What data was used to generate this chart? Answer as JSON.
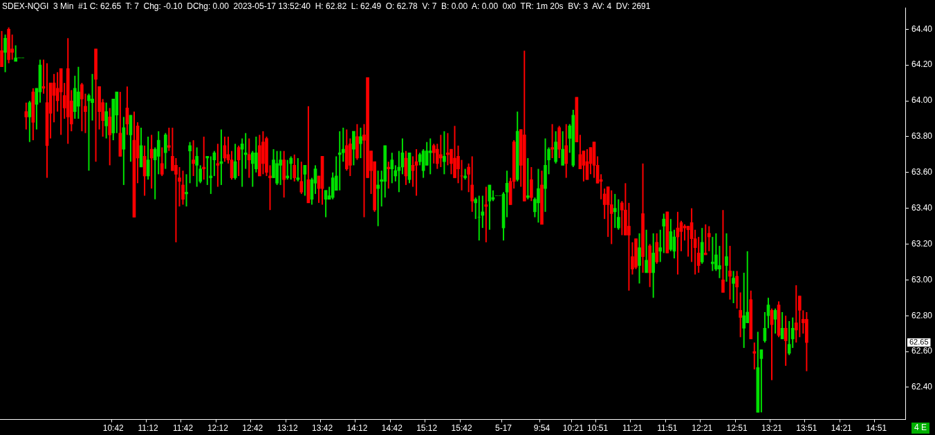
{
  "chart_data": {
    "type": "candlestick",
    "title": "SDEX-NQGI  3 Min  #1 C: 62.65  T: 7  Chg: -0.10  DChg: 0.00  2023-05-17 13:52:40  H: 62.82  L: 62.49  O: 62.78  V: 7  B: 0.00  A: 0.00  0x0  TR: 1m 20s  BV: 3  AV: 4  DV: 2691",
    "categories": [
      null,
      null,
      null,
      null,
      null,
      null,
      null,
      null,
      null,
      null,
      null,
      null,
      null,
      null,
      null,
      null,
      null,
      null,
      null,
      null,
      null,
      null,
      null,
      null,
      null,
      null,
      null,
      null,
      null,
      null,
      null,
      null,
      "10:42",
      null,
      null,
      null,
      null,
      null,
      null,
      null,
      null,
      null,
      "11:12",
      null,
      null,
      null,
      null,
      null,
      null,
      null,
      null,
      null,
      "11:42",
      null,
      null,
      null,
      null,
      null,
      null,
      null,
      null,
      null,
      "12:12",
      null,
      null,
      null,
      null,
      null,
      null,
      null,
      null,
      null,
      "12:42",
      null,
      null,
      null,
      null,
      null,
      null,
      null,
      null,
      null,
      "13:12",
      null,
      null,
      null,
      null,
      null,
      null,
      null,
      null,
      null,
      "13:42",
      null,
      null,
      null,
      null,
      null,
      null,
      null,
      null,
      null,
      "14:12",
      null,
      null,
      null,
      null,
      null,
      null,
      null,
      null,
      null,
      "14:42",
      null,
      null,
      null,
      null,
      null,
      null,
      null,
      null,
      null,
      "15:12",
      null,
      null,
      null,
      null,
      null,
      null,
      null,
      null,
      null,
      "15:42",
      null,
      null,
      null,
      null,
      null,
      null,
      null,
      null,
      null,
      null,
      null,
      "5-17",
      null,
      null,
      null,
      null,
      null,
      null,
      null,
      null,
      null,
      null,
      "9:54",
      null,
      null,
      null,
      null,
      null,
      null,
      null,
      null,
      "10:21",
      null,
      null,
      null,
      null,
      null,
      null,
      "10:51",
      null,
      null,
      null,
      null,
      null,
      null,
      null,
      null,
      null,
      "11:21",
      null,
      null,
      null,
      null,
      null,
      null,
      null,
      null,
      null,
      "11:51",
      null,
      null,
      null,
      null,
      null,
      null,
      null,
      null,
      null,
      "12:21",
      null,
      null,
      null,
      null,
      null,
      null,
      null,
      null,
      null,
      "12:51",
      null,
      null,
      null,
      null,
      null,
      null,
      null,
      null,
      null,
      "13:21",
      null,
      null,
      null,
      null,
      null,
      null,
      null,
      null,
      null,
      "13:51",
      null,
      null,
      null,
      null,
      null,
      null,
      null,
      null,
      null,
      "14:21",
      null,
      null,
      null,
      null,
      null,
      null,
      null,
      null,
      null,
      "14:51",
      null,
      null,
      null,
      null,
      null,
      null,
      null,
      null
    ],
    "ohlc": [
      [
        64.28,
        64.39,
        64.19,
        64.19
      ],
      [
        64.27,
        64.37,
        64.16,
        64.35
      ],
      [
        64.4,
        64.41,
        64.21,
        64.23
      ],
      [
        64.29,
        64.37,
        64.23,
        64.27
      ],
      [
        64.22,
        64.31,
        64.22,
        64.24
      ],
      [
        64.24,
        64.24,
        64.24,
        64.24
      ],
      [
        64.24,
        64.24,
        64.24,
        64.24
      ],
      [
        63.94,
        63.99,
        63.84,
        63.91
      ],
      [
        63.91,
        64.0,
        63.77,
        63.99
      ],
      [
        64.05,
        64.07,
        63.78,
        63.88
      ],
      [
        63.98,
        64.07,
        63.84,
        64.07
      ],
      [
        64.05,
        64.23,
        63.99,
        64.2
      ],
      [
        64.08,
        64.23,
        64.04,
        64.07
      ],
      [
        63.99,
        64.21,
        63.57,
        63.75
      ],
      [
        64.1,
        64.1,
        63.79,
        63.93
      ],
      [
        64.1,
        64.15,
        63.88,
        64.03
      ],
      [
        64.07,
        64.16,
        63.94,
        64.0
      ],
      [
        64.18,
        64.18,
        63.81,
        64.05
      ],
      [
        64.03,
        64.1,
        63.9,
        63.96
      ],
      [
        64.18,
        64.35,
        63.76,
        63.91
      ],
      [
        64.0,
        64.06,
        63.83,
        63.87
      ],
      [
        63.94,
        64.14,
        63.9,
        64.07
      ],
      [
        63.97,
        64.19,
        63.9,
        64.05
      ],
      [
        64.09,
        64.1,
        63.83,
        64.01
      ],
      [
        63.97,
        64.04,
        63.82,
        63.94
      ],
      [
        64.0,
        64.04,
        63.61,
        64.03
      ],
      [
        63.99,
        64.15,
        63.89,
        64.01
      ],
      [
        64.29,
        64.29,
        63.66,
        64.12
      ],
      [
        64.08,
        64.08,
        63.84,
        63.94
      ],
      [
        63.99,
        64.01,
        63.8,
        63.89
      ],
      [
        63.86,
        63.99,
        63.79,
        63.94
      ],
      [
        63.91,
        63.96,
        63.64,
        63.81
      ],
      [
        63.82,
        64.01,
        63.78,
        64.01
      ],
      [
        63.92,
        64.05,
        63.82,
        64.05
      ],
      [
        63.82,
        64.05,
        63.69,
        63.69
      ],
      [
        63.73,
        63.91,
        63.53,
        63.85
      ],
      [
        63.96,
        64.08,
        63.81,
        63.87
      ],
      [
        63.81,
        63.92,
        63.66,
        63.92
      ],
      [
        63.78,
        63.94,
        63.35,
        63.35
      ],
      [
        63.86,
        63.88,
        63.54,
        63.68
      ],
      [
        63.63,
        63.85,
        63.63,
        63.75
      ],
      [
        63.69,
        63.75,
        63.47,
        63.58
      ],
      [
        63.58,
        63.8,
        63.56,
        63.67
      ],
      [
        63.73,
        63.81,
        63.51,
        63.68
      ],
      [
        63.67,
        63.74,
        63.45,
        63.73
      ],
      [
        63.69,
        63.83,
        63.59,
        63.78
      ],
      [
        63.65,
        63.74,
        63.58,
        63.59
      ],
      [
        63.71,
        63.82,
        63.62,
        63.81
      ],
      [
        63.75,
        63.85,
        63.72,
        63.74
      ],
      [
        63.69,
        63.85,
        63.61,
        63.61
      ],
      [
        63.64,
        63.68,
        63.21,
        63.59
      ],
      [
        63.57,
        63.63,
        63.41,
        63.55
      ],
      [
        63.53,
        63.61,
        63.42,
        63.45
      ],
      [
        63.48,
        63.59,
        63.41,
        63.49
      ],
      [
        63.72,
        63.77,
        63.54,
        63.75
      ],
      [
        63.67,
        63.78,
        63.58,
        63.65
      ],
      [
        63.64,
        63.74,
        63.52,
        63.69
      ],
      [
        63.55,
        63.64,
        63.54,
        63.62
      ],
      [
        63.63,
        63.8,
        63.56,
        63.62
      ],
      [
        63.68,
        63.69,
        63.53,
        63.69
      ],
      [
        63.57,
        63.69,
        63.48,
        63.58
      ],
      [
        63.67,
        63.72,
        63.58,
        63.71
      ],
      [
        63.65,
        63.76,
        63.52,
        63.64
      ],
      [
        63.65,
        63.84,
        63.53,
        63.66
      ],
      [
        63.75,
        63.8,
        63.66,
        63.68
      ],
      [
        63.7,
        63.8,
        63.65,
        63.67
      ],
      [
        63.67,
        63.72,
        63.56,
        63.57
      ],
      [
        63.57,
        63.76,
        63.56,
        63.66
      ],
      [
        63.74,
        63.75,
        63.58,
        63.67
      ],
      [
        63.73,
        63.79,
        63.52,
        63.76
      ],
      [
        63.7,
        63.82,
        63.62,
        63.71
      ],
      [
        63.7,
        63.79,
        63.57,
        63.67
      ],
      [
        63.65,
        63.72,
        63.52,
        63.71
      ],
      [
        63.62,
        63.8,
        63.6,
        63.71
      ],
      [
        63.75,
        63.81,
        63.58,
        63.58
      ],
      [
        63.77,
        63.83,
        63.59,
        63.65
      ],
      [
        63.79,
        63.8,
        63.58,
        63.6
      ],
      [
        63.58,
        63.64,
        63.39,
        63.57
      ],
      [
        63.57,
        63.73,
        63.57,
        63.67
      ],
      [
        63.54,
        63.72,
        63.53,
        63.65
      ],
      [
        63.64,
        63.72,
        63.53,
        63.67
      ],
      [
        63.67,
        63.72,
        63.46,
        63.56
      ],
      [
        63.57,
        63.67,
        63.56,
        63.58
      ],
      [
        63.65,
        63.69,
        63.56,
        63.68
      ],
      [
        63.64,
        63.7,
        63.55,
        63.57
      ],
      [
        63.56,
        63.68,
        63.55,
        63.57
      ],
      [
        63.55,
        63.66,
        63.48,
        63.49
      ],
      [
        63.59,
        63.64,
        63.47,
        63.64
      ],
      [
        63.56,
        63.97,
        63.43,
        63.43
      ],
      [
        63.45,
        63.57,
        63.42,
        63.56
      ],
      [
        63.54,
        63.64,
        63.48,
        63.62
      ],
      [
        63.58,
        63.58,
        63.43,
        63.51
      ],
      [
        63.69,
        63.69,
        63.42,
        63.51
      ],
      [
        63.45,
        63.5,
        63.35,
        63.5
      ],
      [
        63.45,
        63.52,
        63.45,
        63.47
      ],
      [
        63.46,
        63.6,
        63.45,
        63.57
      ],
      [
        63.5,
        63.69,
        63.5,
        63.58
      ],
      [
        63.7,
        63.83,
        63.5,
        63.71
      ],
      [
        63.71,
        63.85,
        63.66,
        63.73
      ],
      [
        63.75,
        63.84,
        63.61,
        63.62
      ],
      [
        63.76,
        63.79,
        63.58,
        63.64
      ],
      [
        63.73,
        63.83,
        63.64,
        63.83
      ],
      [
        63.8,
        63.87,
        63.67,
        63.68
      ],
      [
        63.76,
        63.85,
        63.68,
        63.8
      ],
      [
        63.81,
        63.87,
        63.35,
        63.78
      ],
      [
        64.13,
        64.13,
        63.57,
        63.57
      ],
      [
        63.72,
        63.72,
        63.48,
        63.61
      ],
      [
        63.66,
        63.66,
        63.38,
        63.39
      ],
      [
        63.51,
        63.61,
        63.3,
        63.53
      ],
      [
        63.55,
        63.61,
        63.41,
        63.56
      ],
      [
        63.55,
        63.75,
        63.46,
        63.75
      ],
      [
        63.63,
        63.66,
        63.51,
        63.62
      ],
      [
        63.62,
        63.71,
        63.54,
        63.67
      ],
      [
        63.58,
        63.64,
        63.55,
        63.61
      ],
      [
        63.61,
        63.72,
        63.49,
        63.63
      ],
      [
        63.63,
        63.79,
        63.59,
        63.71
      ],
      [
        63.68,
        63.72,
        63.53,
        63.58
      ],
      [
        63.56,
        63.71,
        63.54,
        63.71
      ],
      [
        63.64,
        63.69,
        63.52,
        63.61
      ],
      [
        63.66,
        63.73,
        63.47,
        63.64
      ],
      [
        63.66,
        63.71,
        63.64,
        63.7
      ],
      [
        63.61,
        63.73,
        63.57,
        63.72
      ],
      [
        63.64,
        63.77,
        63.64,
        63.72
      ],
      [
        63.71,
        63.79,
        63.59,
        63.72
      ],
      [
        63.75,
        63.76,
        63.65,
        63.71
      ],
      [
        63.73,
        63.76,
        63.62,
        63.65
      ],
      [
        63.7,
        63.81,
        63.63,
        63.68
      ],
      [
        63.66,
        63.83,
        63.59,
        63.69
      ],
      [
        63.71,
        63.82,
        63.64,
        63.7
      ],
      [
        63.73,
        63.73,
        63.59,
        63.65
      ],
      [
        63.68,
        63.86,
        63.57,
        63.57
      ],
      [
        63.69,
        63.75,
        63.54,
        63.62
      ],
      [
        63.58,
        63.67,
        63.5,
        63.58
      ],
      [
        63.57,
        63.62,
        63.56,
        63.58
      ],
      [
        63.63,
        63.65,
        63.49,
        63.59
      ],
      [
        63.53,
        63.69,
        63.38,
        63.44
      ],
      [
        63.43,
        63.46,
        63.34,
        63.45
      ],
      [
        63.35,
        63.47,
        63.22,
        63.35
      ],
      [
        63.36,
        63.47,
        63.29,
        63.38
      ],
      [
        63.42,
        63.52,
        63.21,
        63.41
      ],
      [
        63.44,
        63.53,
        63.28,
        63.53
      ],
      [
        63.45,
        63.5,
        63.44,
        63.46
      ],
      [
        63.47,
        63.47,
        63.47,
        63.47
      ],
      [
        63.47,
        63.47,
        63.47,
        63.47
      ],
      [
        63.29,
        63.49,
        63.22,
        63.48
      ],
      [
        63.49,
        63.61,
        63.35,
        63.54
      ],
      [
        63.55,
        63.57,
        63.42,
        63.42
      ],
      [
        63.77,
        63.78,
        63.51,
        63.55
      ],
      [
        63.56,
        63.94,
        63.55,
        63.83
      ],
      [
        63.84,
        63.84,
        63.52,
        63.64
      ],
      [
        63.81,
        64.28,
        63.44,
        63.44
      ],
      [
        63.46,
        63.68,
        63.45,
        63.47
      ],
      [
        63.56,
        63.63,
        63.44,
        63.46
      ],
      [
        63.38,
        63.46,
        63.35,
        63.45
      ],
      [
        63.43,
        63.62,
        63.32,
        63.51
      ],
      [
        63.53,
        63.61,
        63.31,
        63.31
      ],
      [
        63.51,
        63.79,
        63.38,
        63.64
      ],
      [
        63.67,
        63.74,
        63.59,
        63.73
      ],
      [
        63.74,
        63.87,
        63.68,
        63.73
      ],
      [
        63.66,
        63.83,
        63.65,
        63.77
      ],
      [
        63.85,
        63.86,
        63.68,
        63.73
      ],
      [
        63.64,
        63.83,
        63.64,
        63.73
      ],
      [
        63.75,
        63.87,
        63.57,
        63.65
      ],
      [
        63.79,
        63.87,
        63.71,
        63.86
      ],
      [
        63.64,
        63.95,
        63.63,
        63.92
      ],
      [
        64.02,
        64.02,
        63.77,
        63.77
      ],
      [
        63.7,
        63.81,
        63.62,
        63.62
      ],
      [
        63.72,
        63.72,
        63.55,
        63.64
      ],
      [
        63.66,
        63.73,
        63.56,
        63.56
      ],
      [
        63.74,
        63.74,
        63.59,
        63.65
      ],
      [
        63.77,
        63.77,
        63.57,
        63.64
      ],
      [
        63.64,
        63.69,
        63.54,
        63.54
      ],
      [
        63.56,
        63.59,
        63.45,
        63.55
      ],
      [
        63.48,
        63.51,
        63.34,
        63.42
      ],
      [
        63.52,
        63.52,
        63.24,
        63.42
      ],
      [
        63.42,
        63.5,
        63.2,
        63.37
      ],
      [
        63.38,
        63.48,
        63.29,
        63.4
      ],
      [
        63.29,
        63.45,
        63.28,
        63.35
      ],
      [
        63.43,
        63.44,
        63.25,
        63.39
      ],
      [
        63.39,
        63.54,
        63.25,
        63.25
      ],
      [
        63.3,
        63.43,
        62.94,
        63.25
      ],
      [
        63.13,
        63.21,
        63.03,
        63.06
      ],
      [
        63.23,
        63.23,
        63.06,
        63.07
      ],
      [
        63.08,
        63.26,
        62.98,
        63.18
      ],
      [
        63.37,
        63.65,
        63.04,
        63.13
      ],
      [
        63.04,
        63.28,
        63.04,
        63.11
      ],
      [
        63.19,
        63.2,
        62.96,
        63.04
      ],
      [
        63.04,
        63.26,
        62.9,
        63.15
      ],
      [
        63.21,
        63.26,
        63.09,
        63.1
      ],
      [
        63.16,
        63.28,
        63.1,
        63.18
      ],
      [
        63.3,
        63.37,
        63.15,
        63.34
      ],
      [
        63.38,
        63.38,
        63.15,
        63.15
      ],
      [
        63.17,
        63.34,
        63.16,
        63.27
      ],
      [
        63.16,
        63.28,
        63.12,
        63.24
      ],
      [
        63.29,
        63.38,
        63.03,
        63.24
      ],
      [
        63.32,
        63.33,
        63.16,
        63.27
      ],
      [
        63.3,
        63.31,
        63.22,
        63.29
      ],
      [
        63.3,
        63.3,
        63.13,
        63.28
      ],
      [
        63.32,
        63.4,
        63.1,
        63.23
      ],
      [
        63.23,
        63.28,
        63.03,
        63.18
      ],
      [
        63.15,
        63.24,
        63.04,
        63.08
      ],
      [
        63.1,
        63.29,
        63.09,
        63.21
      ],
      [
        63.15,
        63.31,
        63.14,
        63.14
      ],
      [
        63.26,
        63.3,
        63.16,
        63.24
      ],
      [
        63.09,
        63.24,
        63.05,
        63.1
      ],
      [
        63.06,
        63.26,
        63.05,
        63.14
      ],
      [
        63.06,
        63.19,
        63.01,
        63.08
      ],
      [
        63.0,
        63.39,
        62.93,
        62.93
      ],
      [
        63.08,
        63.26,
        62.99,
        63.13
      ],
      [
        63.05,
        63.19,
        62.89,
        63.02
      ],
      [
        62.98,
        63.05,
        62.87,
        63.01
      ],
      [
        63.02,
        63.05,
        62.84,
        62.96
      ],
      [
        62.83,
        62.93,
        62.68,
        62.79
      ],
      [
        62.73,
        63.04,
        62.62,
        62.8
      ],
      [
        62.76,
        63.16,
        62.76,
        62.82
      ],
      [
        62.89,
        62.94,
        62.67,
        62.67
      ],
      [
        62.6,
        62.65,
        62.5,
        62.59
      ],
      [
        62.26,
        62.71,
        62.26,
        62.51
      ],
      [
        62.56,
        62.61,
        62.26,
        62.61
      ],
      [
        62.66,
        62.82,
        62.65,
        62.73
      ],
      [
        62.8,
        62.9,
        62.73,
        62.86
      ],
      [
        62.83,
        62.84,
        62.44,
        62.75
      ],
      [
        62.78,
        62.84,
        62.7,
        62.83
      ],
      [
        62.86,
        62.88,
        62.68,
        62.69
      ],
      [
        62.67,
        62.82,
        62.67,
        62.73
      ],
      [
        62.73,
        62.8,
        62.52,
        62.66
      ],
      [
        62.59,
        62.77,
        62.58,
        62.64
      ],
      [
        62.67,
        62.79,
        62.62,
        62.73
      ],
      [
        62.76,
        62.97,
        62.65,
        62.72
      ],
      [
        62.91,
        62.91,
        62.68,
        62.83
      ],
      [
        62.78,
        62.83,
        62.7,
        62.76
      ],
      [
        62.78,
        62.82,
        62.49,
        62.65
      ],
      null,
      null,
      null,
      null,
      null,
      null,
      null,
      null,
      null,
      null,
      null,
      null,
      null,
      null,
      null,
      null,
      null,
      null,
      null,
      null,
      null,
      null,
      null,
      null,
      null,
      null,
      null,
      null
    ],
    "colors": [
      "#ff0000",
      "#00e000",
      "#ff0000",
      "#ff0000",
      "#00e000",
      "#00e000",
      "#00e000",
      "#ff0000",
      "#00e000",
      "#ff0000",
      "#00e000",
      "#00e000",
      "#ff0000",
      "#ff0000",
      "#ff0000",
      "#ff0000",
      "#ff0000",
      "#ff0000",
      "#ff0000",
      "#ff0000",
      "#ff0000",
      "#00e000",
      "#00e000",
      "#ff0000",
      "#ff0000",
      "#00e000",
      "#00e000",
      "#ff0000",
      "#ff0000",
      "#ff0000",
      "#00e000",
      "#ff0000",
      "#00e000",
      "#00e000",
      "#ff0000",
      "#00e000",
      "#ff0000",
      "#00e000",
      "#ff0000",
      "#ff0000",
      "#00e000",
      "#ff0000",
      "#00e000",
      "#ff0000",
      "#00e000",
      "#00e000",
      "#ff0000",
      "#00e000",
      "#ff0000",
      "#ff0000",
      "#ff0000",
      "#ff0000",
      "#ff0000",
      "#00e000",
      "#00e000",
      "#ff0000",
      "#00e000",
      "#00e000",
      "#ff0000",
      "#00e000",
      "#00e000",
      "#00e000",
      "#ff0000",
      "#00e000",
      "#ff0000",
      "#ff0000",
      "#ff0000",
      "#00e000",
      "#ff0000",
      "#00e000",
      "#00e000",
      "#ff0000",
      "#00e000",
      "#00e000",
      "#ff0000",
      "#ff0000",
      "#ff0000",
      "#ff0000",
      "#00e000",
      "#00e000",
      "#00e000",
      "#ff0000",
      "#00e000",
      "#00e000",
      "#ff0000",
      "#00e000",
      "#ff0000",
      "#00e000",
      "#ff0000",
      "#00e000",
      "#00e000",
      "#ff0000",
      "#ff0000",
      "#00e000",
      "#00e000",
      "#00e000",
      "#00e000",
      "#00e000",
      "#00e000",
      "#ff0000",
      "#ff0000",
      "#00e000",
      "#ff0000",
      "#00e000",
      "#ff0000",
      "#ff0000",
      "#ff0000",
      "#ff0000",
      "#00e000",
      "#00e000",
      "#00e000",
      "#ff0000",
      "#00e000",
      "#00e000",
      "#00e000",
      "#00e000",
      "#ff0000",
      "#00e000",
      "#ff0000",
      "#ff0000",
      "#00e000",
      "#00e000",
      "#00e000",
      "#00e000",
      "#ff0000",
      "#ff0000",
      "#ff0000",
      "#00e000",
      "#ff0000",
      "#ff0000",
      "#ff0000",
      "#ff0000",
      "#ff0000",
      "#00e000",
      "#ff0000",
      "#ff0000",
      "#00e000",
      "#00e000",
      "#00e000",
      "#ff0000",
      "#00e000",
      "#00e000",
      "#00e000",
      "#00e000",
      "#00e000",
      "#00e000",
      "#ff0000",
      "#ff0000",
      "#00e000",
      "#ff0000",
      "#ff0000",
      "#00e000",
      "#ff0000",
      "#00e000",
      "#00e000",
      "#ff0000",
      "#00e000",
      "#00e000",
      "#ff0000",
      "#00e000",
      "#ff0000",
      "#00e000",
      "#ff0000",
      "#00e000",
      "#00e000",
      "#ff0000",
      "#ff0000",
      "#ff0000",
      "#ff0000",
      "#ff0000",
      "#ff0000",
      "#ff0000",
      "#ff0000",
      "#ff0000",
      "#ff0000",
      "#ff0000",
      "#00e000",
      "#00e000",
      "#ff0000",
      "#ff0000",
      "#ff0000",
      "#ff0000",
      "#ff0000",
      "#00e000",
      "#ff0000",
      "#00e000",
      "#ff0000",
      "#00e000",
      "#ff0000",
      "#00e000",
      "#00e000",
      "#ff0000",
      "#00e000",
      "#00e000",
      "#ff0000",
      "#ff0000",
      "#ff0000",
      "#ff0000",
      "#ff0000",
      "#ff0000",
      "#ff0000",
      "#00e000",
      "#ff0000",
      "#ff0000",
      "#00e000",
      "#00e000",
      "#00e000",
      "#ff0000",
      "#00e000",
      "#ff0000",
      "#00e000",
      "#ff0000",
      "#ff0000",
      "#00e000",
      "#00e000",
      "#ff0000",
      "#ff0000",
      "#00e000",
      "#00e000",
      "#00e000",
      "#00e000",
      "#ff0000",
      "#00e000",
      "#ff0000",
      "#00e000",
      "#ff0000",
      "#00e000",
      "#00e000",
      "#ff0000",
      "#ff0000",
      "#ff0000",
      "#ff0000",
      null,
      null,
      null,
      null,
      null,
      null,
      null,
      null,
      null,
      null,
      null,
      null,
      null,
      null,
      null,
      null,
      null,
      null,
      null,
      null,
      null,
      null,
      null,
      null,
      null,
      null,
      null,
      null
    ],
    "ylim": [
      62.22,
      64.52
    ],
    "yticks": [
      {
        "value": 62.4,
        "label": "62.40"
      },
      {
        "value": 62.6,
        "label": "62.60"
      },
      {
        "value": 62.8,
        "label": "62.80"
      },
      {
        "value": 63.0,
        "label": "63.00"
      },
      {
        "value": 63.2,
        "label": "63.20"
      },
      {
        "value": 63.4,
        "label": "63.40"
      },
      {
        "value": 63.6,
        "label": "63.60"
      },
      {
        "value": 63.8,
        "label": "63.80"
      },
      {
        "value": 64.0,
        "label": "64.00"
      },
      {
        "value": 64.2,
        "label": "64.20"
      },
      {
        "value": 64.4,
        "label": "64.40"
      }
    ],
    "annotations": [
      {
        "text": "62.65",
        "y": 62.65
      },
      "4 E"
    ],
    "grid": false,
    "legend": false
  }
}
